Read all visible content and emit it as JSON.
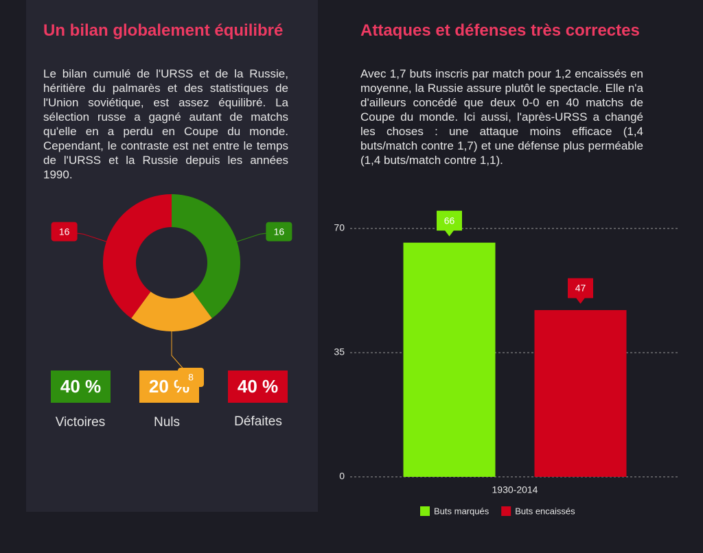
{
  "left": {
    "title": "Un bilan globalement équilibré",
    "text": "Le bilan cumulé de l'URSS et de la Russie, héritière du palmarès et des statistiques de l'Union soviétique, est assez équilibré. La sélection russe a gagné autant de matchs qu'elle en a perdu en Coupe du monde. Cependant, le contraste est net entre le temps de l'URSS et la Russie depuis les années 1990.",
    "stats": [
      {
        "value": "40 %",
        "label": "Victoires"
      },
      {
        "value": "20 %",
        "label": "Nuls"
      },
      {
        "value": "40 %",
        "label": "Défaites"
      }
    ]
  },
  "right": {
    "title": "Attaques et défenses très correctes",
    "text": "Avec 1,7 buts inscris par match pour 1,2 encaissés en moyenne, la Russie assure plutôt le spectacle. Elle n'a d'ailleurs concédé que deux 0-0 en 40 matchs de Coupe du monde. Ici aussi, l'après-URSS a changé les choses : une attaque moins efficace (1,4 buts/match contre 1,7) et une défense plus perméable (1,4 buts/match contre 1,1)."
  },
  "chart_data": [
    {
      "type": "pie",
      "donut": true,
      "values": [
        16,
        8,
        16
      ],
      "colors": [
        "#2f8f0f",
        "#f5a623",
        "#d0021b"
      ]
    },
    {
      "type": "bar",
      "categories": [
        "1930-2014"
      ],
      "series": [
        {
          "name": "Buts marqués",
          "color": "#7fec0a",
          "values": [
            66
          ]
        },
        {
          "name": "Buts encaissés",
          "color": "#d0021b",
          "values": [
            47
          ]
        }
      ],
      "ylim": [
        0,
        70
      ],
      "yticks": [
        0,
        35,
        70
      ],
      "grid": true
    }
  ]
}
